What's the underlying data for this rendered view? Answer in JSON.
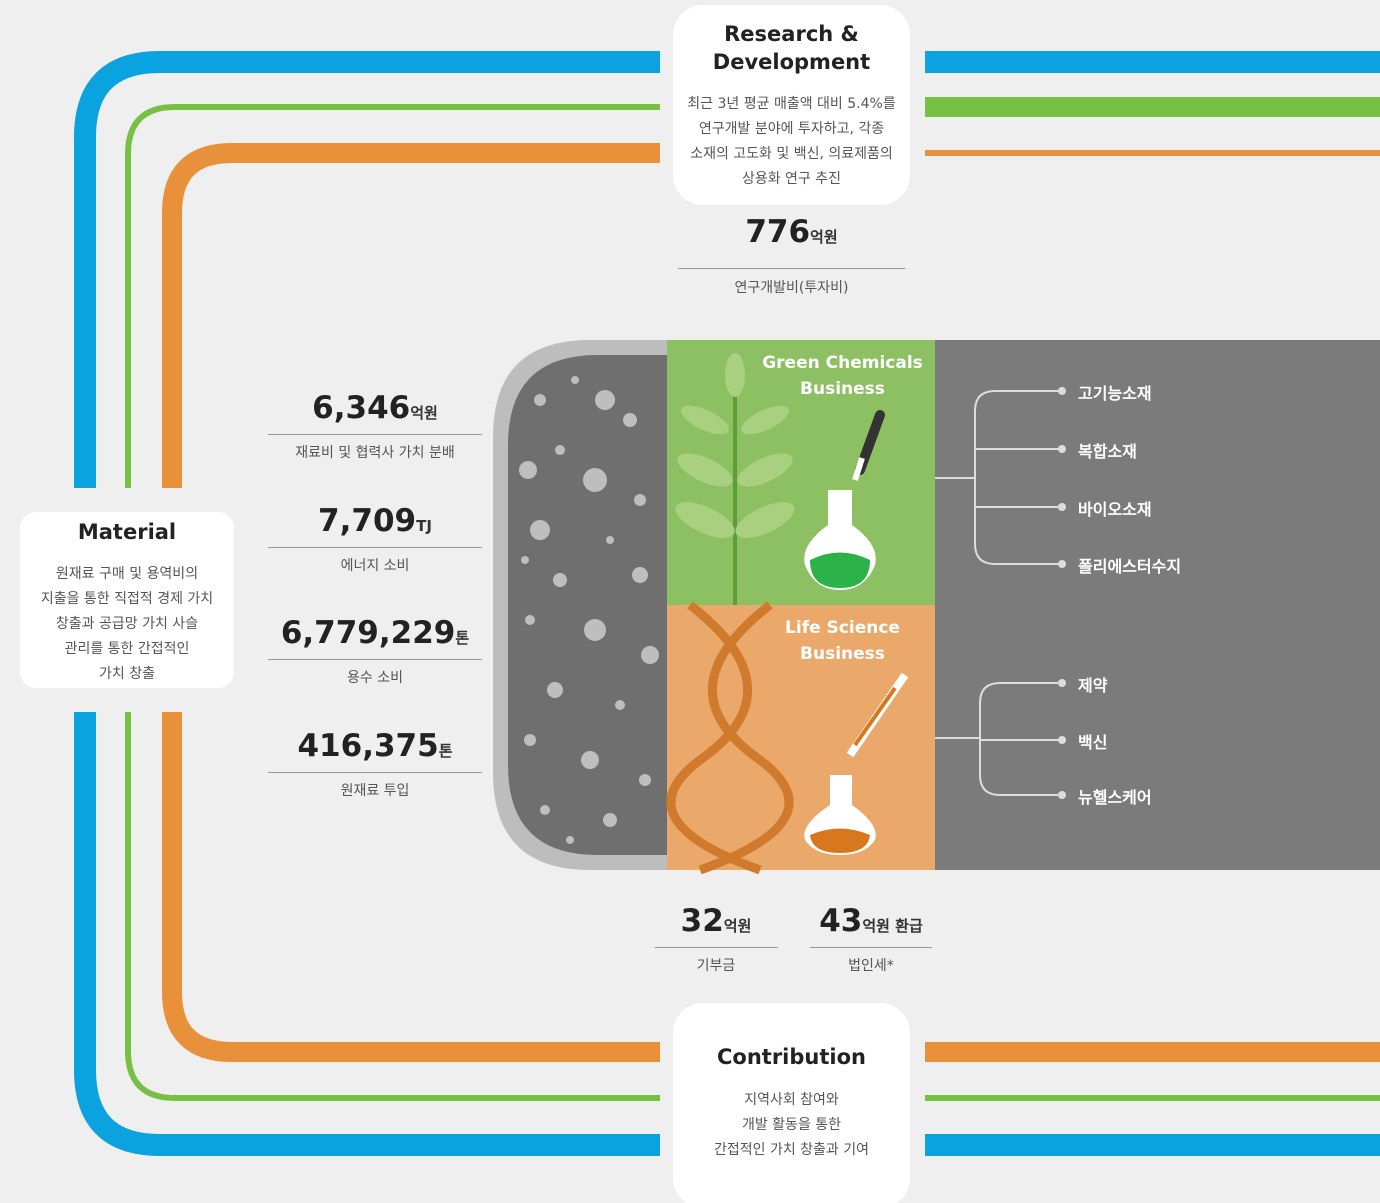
{
  "rnd": {
    "title": "Research & Development",
    "desc": [
      "최근 3년 평균 매출액 대비 5.4%를",
      "연구개발 분야에 투자하고, 각종",
      "소재의 고도화 및 백신, 의료제품의",
      "상용화 연구 추진"
    ],
    "stat": {
      "value": "776",
      "unit": "억원",
      "label": "연구개발비(투자비)"
    }
  },
  "material": {
    "title": "Material",
    "desc": [
      "원재료 구매 및 용역비의",
      "지출을 통한 직접적 경제 가치",
      "창출과 공급망 가치 사슬",
      "관리를 통한 간접적인",
      "가치 창출"
    ],
    "stats": [
      {
        "value": "6,346",
        "unit": "억원",
        "label": "재료비 및 협력사 가치 분배"
      },
      {
        "value": "7,709",
        "unit": "TJ",
        "label": "에너지 소비"
      },
      {
        "value": "6,779,229",
        "unit": "톤",
        "label": "용수 소비"
      },
      {
        "value": "416,375",
        "unit": "톤",
        "label": "원재료 투입"
      }
    ]
  },
  "green": {
    "title": [
      "Green Chemicals",
      "Business"
    ],
    "items": [
      "고기능소재",
      "복합소재",
      "바이오소재",
      "폴리에스터수지"
    ]
  },
  "life": {
    "title": [
      "Life Science",
      "Business"
    ],
    "items": [
      "제약",
      "백신",
      "뉴헬스케어"
    ]
  },
  "contribution": {
    "title": "Contribution",
    "desc": [
      "지역사회 참여와",
      "개발 활동을 통한",
      "간접적인 가치 창출과 기여"
    ],
    "stats": [
      {
        "value": "32",
        "unit": "억원",
        "label": "기부금"
      },
      {
        "value": "43",
        "unit": "억원 환급",
        "label": "법인세*"
      }
    ]
  }
}
